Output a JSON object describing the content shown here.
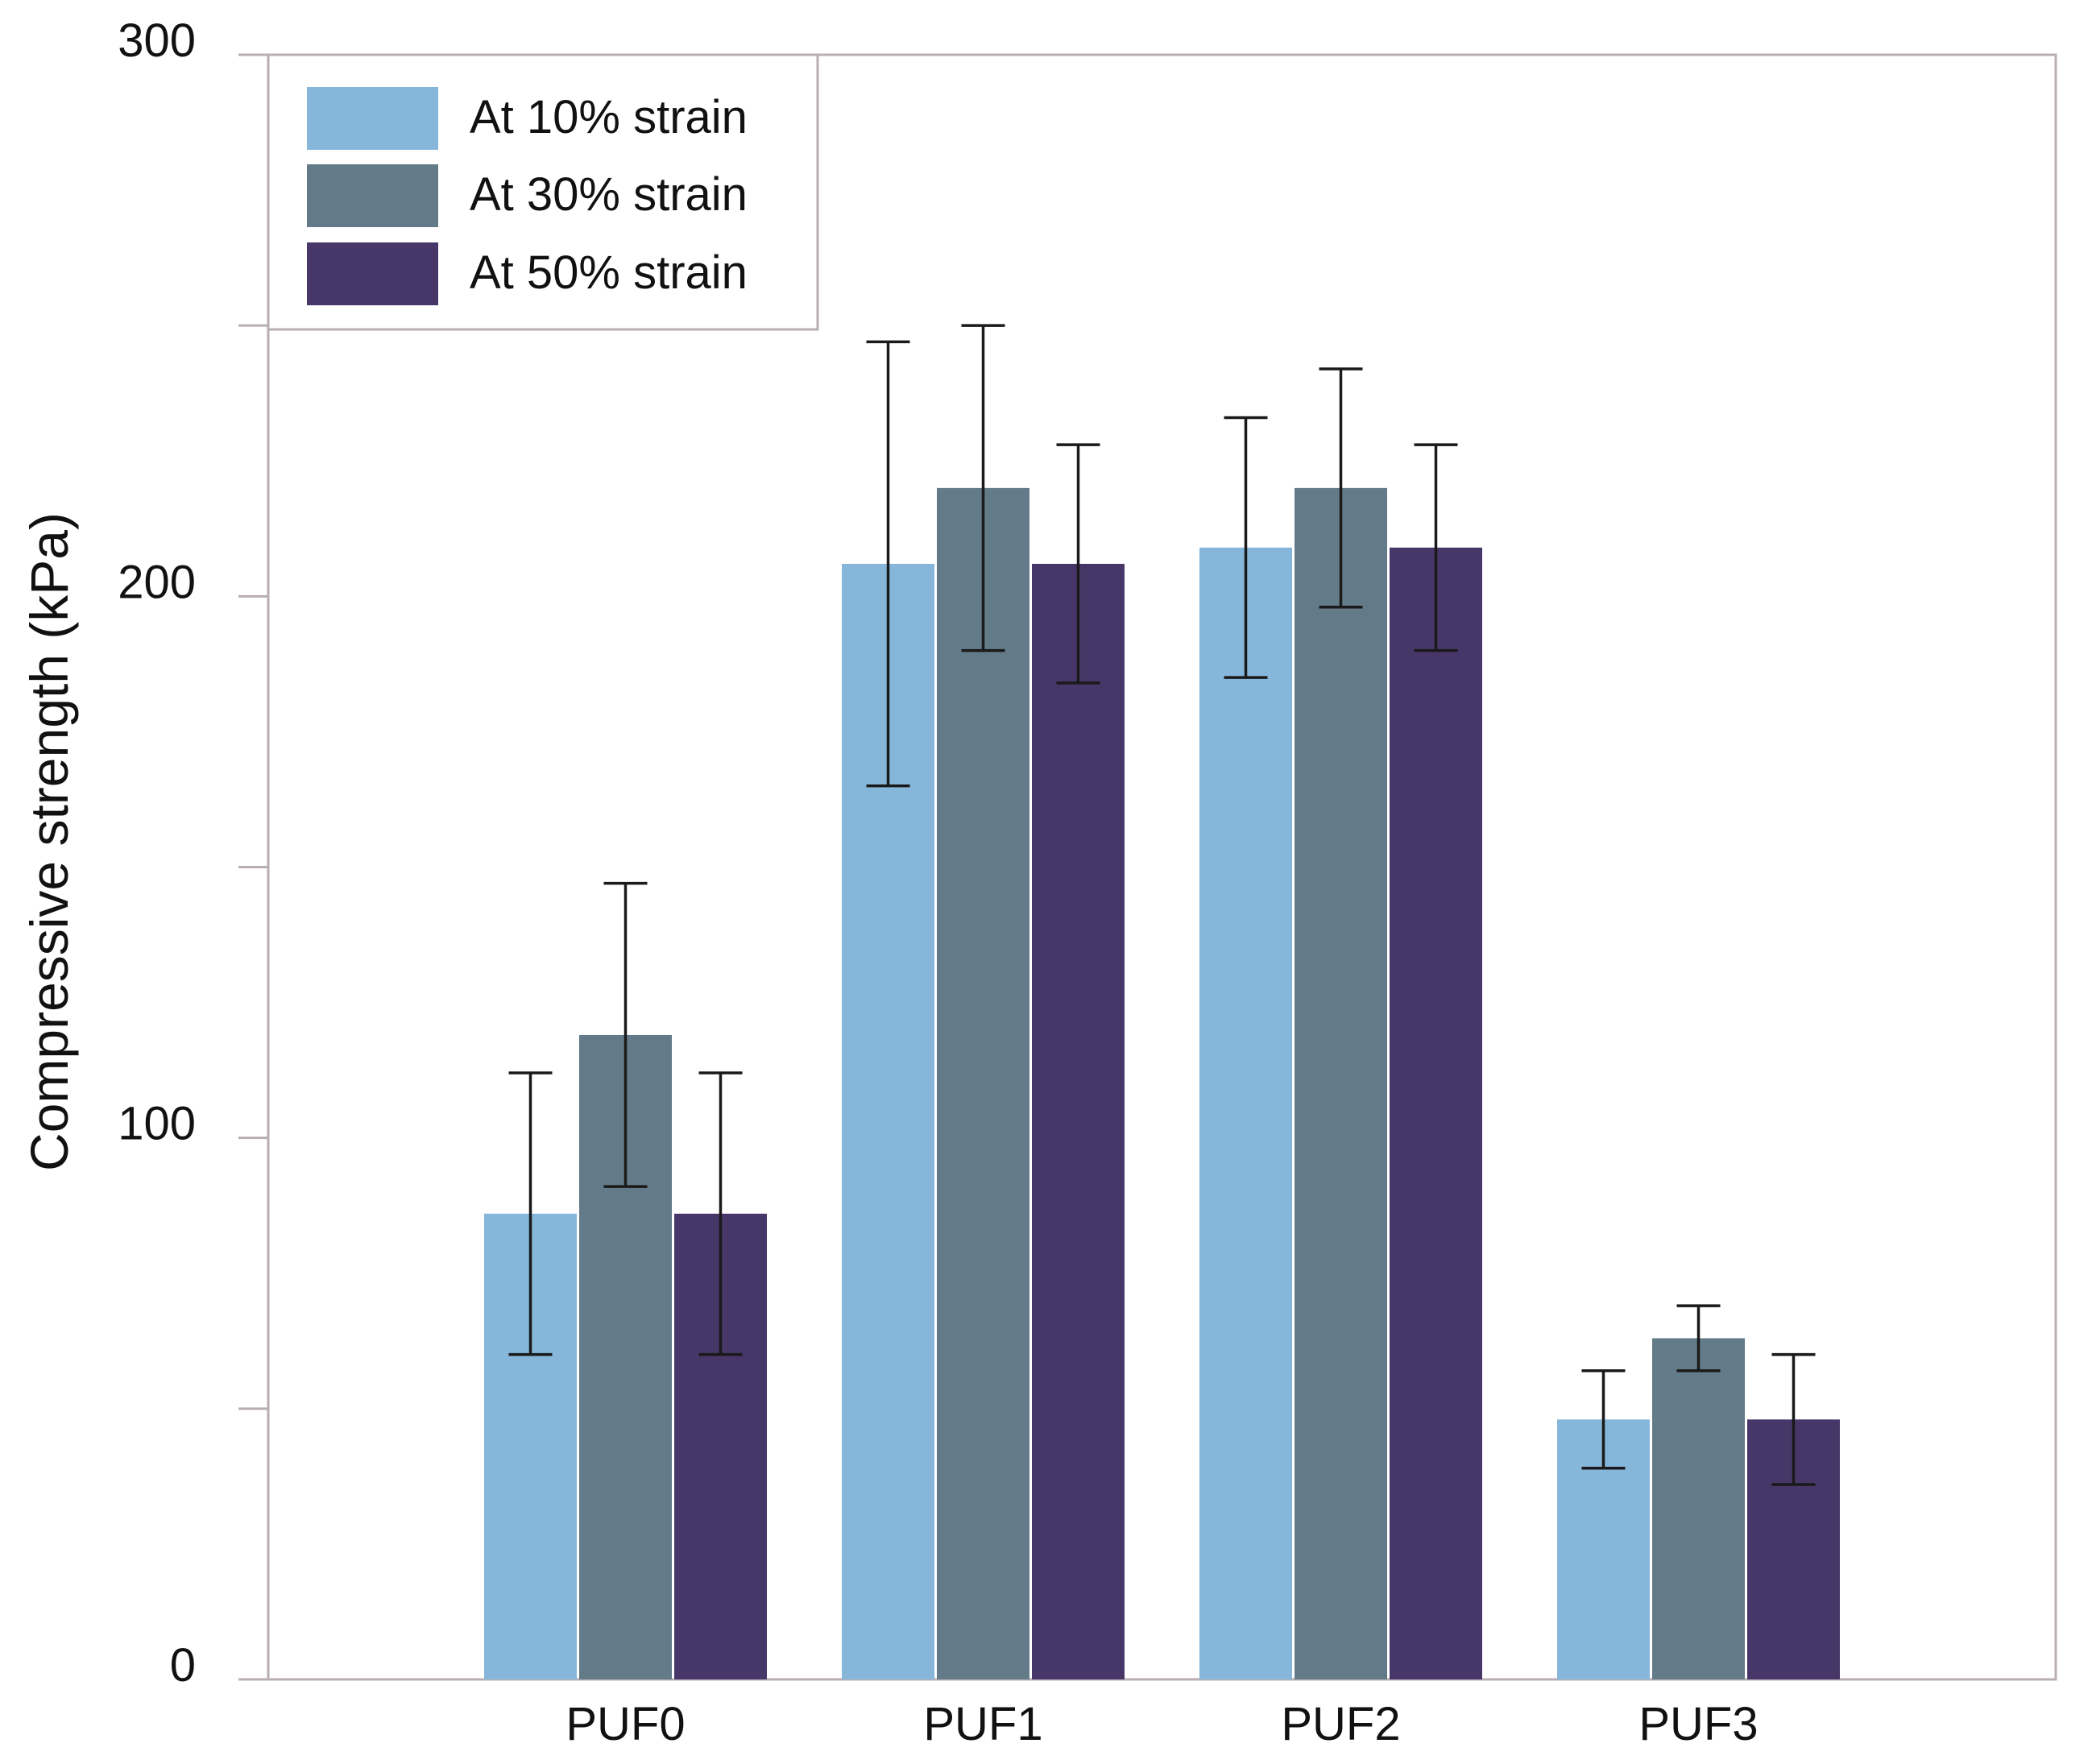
{
  "chart_data": {
    "type": "bar",
    "title": "",
    "xlabel": "",
    "ylabel": "Compressive strength (kPa)",
    "ylim": [
      0,
      300
    ],
    "yticks": [
      0,
      50,
      100,
      150,
      200,
      250,
      300
    ],
    "ytick_labels": {
      "0": "0",
      "100": "100",
      "200": "200",
      "300": "300"
    },
    "categories": [
      "PUF0",
      "PUF1",
      "PUF2",
      "PUF3"
    ],
    "series": [
      {
        "name": "At 10% strain",
        "color": "#86b7db",
        "values": [
          86,
          206,
          209,
          48
        ],
        "errors": [
          26,
          41,
          24,
          9
        ]
      },
      {
        "name": "At 30% strain",
        "color": "#637b88",
        "values": [
          119,
          220,
          220,
          63
        ],
        "errors": [
          28,
          30,
          22,
          6
        ]
      },
      {
        "name": "At 50% strain",
        "color": "#473769",
        "values": [
          86,
          206,
          209,
          48
        ],
        "errors": [
          26,
          22,
          19,
          12
        ]
      }
    ],
    "legend_position": "top-left",
    "grid": false
  }
}
